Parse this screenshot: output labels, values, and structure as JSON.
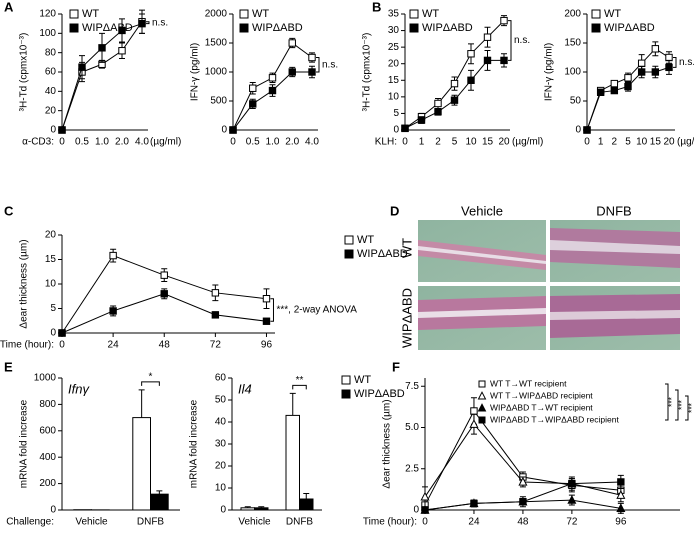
{
  "chart_data": [
    {
      "type": "line",
      "panel": "A",
      "ylabel": "³H-Td (cpmx10⁻³)",
      "xprefix": "α-CD3:",
      "xunit": "(µg/ml)",
      "categories": [
        "0",
        "0.5",
        "1.0",
        "2.0",
        "4.0"
      ],
      "ylim": [
        0,
        120
      ],
      "yticks": [
        0,
        20,
        40,
        60,
        80,
        100,
        120
      ],
      "legend": "upper left",
      "annotation": "n.s.",
      "series": [
        {
          "name": "WT",
          "color": "#ffffff",
          "marker": "square",
          "values": [
            0,
            60,
            68,
            82,
            112
          ],
          "errors": [
            null,
            10,
            4,
            8,
            12
          ]
        },
        {
          "name": "WIPΔABD",
          "color": "#000000",
          "marker": "square",
          "values": [
            0,
            65,
            85,
            103,
            110
          ],
          "errors": [
            null,
            12,
            15,
            12,
            10
          ]
        }
      ]
    },
    {
      "type": "line",
      "ylabel": "IFN-γ (pg/ml)",
      "categories": [
        "0",
        "0.5",
        "1.0",
        "2.0",
        "4.0"
      ],
      "ylim": [
        0,
        2000
      ],
      "yticks": [
        0,
        500,
        1000,
        1500,
        2000
      ],
      "legend": "upper left",
      "annotation": "n.s.",
      "series": [
        {
          "name": "WT",
          "color": "#ffffff",
          "marker": "square",
          "values": [
            0,
            720,
            900,
            1500,
            1250
          ],
          "errors": [
            null,
            100,
            80,
            80,
            80
          ]
        },
        {
          "name": "WIPΔABD",
          "color": "#000000",
          "marker": "square",
          "values": [
            0,
            450,
            680,
            1000,
            1000
          ],
          "errors": [
            null,
            80,
            100,
            80,
            100
          ]
        }
      ]
    },
    {
      "type": "line",
      "panel": "B",
      "ylabel": "³H-Td (cpmx10⁻³)",
      "xprefix": "KLH:",
      "xunit": "(µg/ml)",
      "categories": [
        "0",
        "1",
        "2",
        "5",
        "10",
        "15",
        "20"
      ],
      "ylim": [
        0,
        35
      ],
      "yticks": [
        0,
        5,
        10,
        15,
        20,
        25,
        30,
        35
      ],
      "legend": "upper left",
      "annotation": "n.s.",
      "series": [
        {
          "name": "WT",
          "color": "#ffffff",
          "marker": "square",
          "values": [
            0.5,
            4,
            8,
            14,
            23,
            28,
            33
          ],
          "errors": [
            null,
            1,
            1.5,
            2,
            3,
            3,
            1.5
          ]
        },
        {
          "name": "WIPΔABD",
          "color": "#000000",
          "marker": "square",
          "values": [
            0.5,
            3,
            5.5,
            9,
            15,
            21,
            21
          ],
          "errors": [
            null,
            1,
            1,
            1.5,
            3,
            3,
            2
          ]
        }
      ]
    },
    {
      "type": "line",
      "ylabel": "IFN-γ (pg/ml)",
      "categories": [
        "0",
        "1",
        "2",
        "5",
        "10",
        "15",
        "20"
      ],
      "xunit": "(µg/ml)",
      "ylim": [
        0,
        200
      ],
      "yticks": [
        0,
        50,
        100,
        150,
        200
      ],
      "legend": "upper left",
      "annotation": "n.s.",
      "series": [
        {
          "name": "WT",
          "color": "#ffffff",
          "marker": "square",
          "values": [
            0,
            68,
            80,
            90,
            115,
            140,
            125
          ],
          "errors": [
            null,
            5,
            5,
            8,
            15,
            12,
            10
          ]
        },
        {
          "name": "WIPΔABD",
          "color": "#000000",
          "marker": "square",
          "values": [
            0,
            65,
            68,
            75,
            100,
            100,
            108
          ],
          "errors": [
            null,
            5,
            5,
            8,
            10,
            10,
            12
          ]
        }
      ]
    },
    {
      "type": "line",
      "panel": "C",
      "ylabel": "Δear thickness (µm)",
      "xprefix": "Time (hour):",
      "x": [
        0,
        24,
        48,
        72,
        96
      ],
      "xlim": [
        0,
        100
      ],
      "xticks": [
        0,
        24,
        48,
        72,
        96
      ],
      "ylim": [
        0,
        20
      ],
      "yticks": [
        0,
        5,
        10,
        15,
        20
      ],
      "legend": "right",
      "annotation": "***, 2-way ANOVA",
      "series": [
        {
          "name": "WT",
          "color": "#ffffff",
          "marker": "square",
          "values": [
            0,
            15.8,
            11.8,
            8.2,
            7
          ],
          "errors": [
            null,
            1.3,
            1.3,
            1.6,
            2
          ]
        },
        {
          "name": "WIPΔABD",
          "color": "#000000",
          "marker": "square",
          "values": [
            0,
            4.5,
            8,
            3.7,
            2.4
          ],
          "errors": [
            null,
            1,
            1,
            0.6,
            0.5
          ]
        }
      ]
    },
    {
      "type": "bar",
      "panel": "E",
      "title": "Ifnγ",
      "ylabel": "mRNA fold increase",
      "xprefix": "Challenge:",
      "categories": [
        "Vehicle",
        "DNFB"
      ],
      "ylim": [
        0,
        1000
      ],
      "yticks": [
        0,
        200,
        400,
        600,
        800,
        1000
      ],
      "annotation": "*",
      "series": [
        {
          "name": "WT",
          "color": "#ffffff",
          "marker": "square",
          "values": [
            2,
            700
          ],
          "errors": [
            null,
            210
          ]
        },
        {
          "name": "WIPΔABD",
          "color": "#000000",
          "marker": "square",
          "values": [
            1,
            120
          ],
          "errors": [
            null,
            25
          ]
        }
      ]
    },
    {
      "type": "bar",
      "title": "Il4",
      "ylabel": "mRNA fold increase",
      "categories": [
        "Vehicle",
        "DNFB"
      ],
      "ylim": [
        0,
        60
      ],
      "yticks": [
        0,
        10,
        20,
        30,
        40,
        50,
        60
      ],
      "legend": "right",
      "annotation": "**",
      "series": [
        {
          "name": "WT",
          "color": "#ffffff",
          "marker": "square",
          "values": [
            1,
            43
          ],
          "errors": [
            0.5,
            10
          ]
        },
        {
          "name": "WIPΔABD",
          "color": "#000000",
          "marker": "square",
          "values": [
            1,
            5
          ],
          "errors": [
            0.5,
            2.5
          ]
        }
      ]
    },
    {
      "type": "line",
      "panel": "F",
      "ylabel": "Δear thickness (µm)",
      "xprefix": "Time (hour):",
      "x": [
        0,
        24,
        48,
        72,
        96
      ],
      "xlim": [
        0,
        125
      ],
      "xticks": [
        0,
        24,
        48,
        72,
        96
      ],
      "ylim": [
        0,
        8
      ],
      "yticks": [
        0,
        2.5,
        {
          "value": 5,
          "label": "5.0"
        },
        7.5
      ],
      "legend": "upper right",
      "annotations": [
        "***",
        "***",
        "***"
      ],
      "series": [
        {
          "name": "WT T→WT recipient",
          "color": "#ffffff",
          "marker": "square",
          "values": [
            0.3,
            6,
            2,
            1.5,
            1.2
          ],
          "errors": [
            0.3,
            0.8,
            0.3,
            0.4,
            0.4
          ]
        },
        {
          "name": "WT T→WIPΔABD recipient",
          "color": "#ffffff",
          "marker": "triangle",
          "values": [
            0.8,
            5.2,
            1.7,
            1.6,
            0.9
          ],
          "errors": [
            0.6,
            0.6,
            0.3,
            0.3,
            0.4
          ]
        },
        {
          "name": "WIPΔABD T→WT recipient",
          "color": "#000000",
          "marker": "triangle",
          "values": [
            0,
            0.4,
            0.5,
            0.6,
            0.1
          ],
          "errors": [
            null,
            0.2,
            0.2,
            0.3,
            0.3
          ]
        },
        {
          "name": "WIPΔABD T→WIPΔABD recipient",
          "color": "#000000",
          "marker": "square",
          "values": [
            0,
            0.4,
            0.5,
            1.6,
            1.7
          ],
          "errors": [
            null,
            0.2,
            0.3,
            0.4,
            0.4
          ]
        }
      ]
    }
  ],
  "panel_d": {
    "panel": "D",
    "columns": [
      "Vehicle",
      "DNFB"
    ],
    "rows": [
      "WT",
      "WIPΔABD"
    ]
  }
}
